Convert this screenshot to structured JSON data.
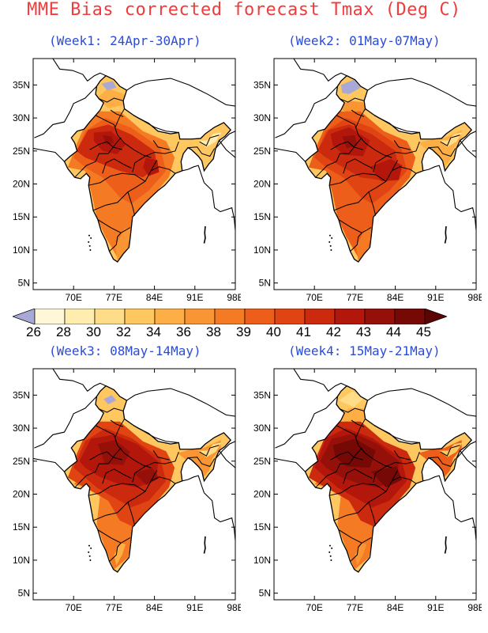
{
  "title": "MME Bias corrected forecast Tmax (Deg C)",
  "panels": [
    {
      "label": "(Week1: 24Apr-30Apr)"
    },
    {
      "label": "(Week2: 01May-07May)"
    },
    {
      "label": "(Week3: 08May-14May)"
    },
    {
      "label": "(Week4: 15May-21May)"
    }
  ],
  "axes": {
    "lat_labels": [
      "35N",
      "30N",
      "25N",
      "20N",
      "15N",
      "10N",
      "5N"
    ],
    "lon_labels": [
      "70E",
      "77E",
      "84E",
      "91E",
      "98E"
    ]
  },
  "colorbar": {
    "labels": [
      "26",
      "28",
      "30",
      "32",
      "34",
      "36",
      "38",
      "39",
      "40",
      "41",
      "42",
      "43",
      "44",
      "45"
    ],
    "colors": [
      "#a9a9d8",
      "#fff8d8",
      "#ffedb0",
      "#ffdd88",
      "#ffc760",
      "#fdae45",
      "#f99533",
      "#f47a24",
      "#ec5e1a",
      "#df4412",
      "#cc2a0e",
      "#b3170c",
      "#96100a",
      "#760806",
      "#5c0303"
    ]
  },
  "chart_data": {
    "type": "heatmap",
    "title": "MME Bias corrected forecast Tmax (Deg C)",
    "variable": "Tmax",
    "units": "Deg C",
    "levels": [
      26,
      28,
      30,
      32,
      34,
      36,
      38,
      39,
      40,
      41,
      42,
      43,
      44,
      45
    ],
    "lat_ticks": [
      "35N",
      "30N",
      "25N",
      "20N",
      "15N",
      "10N",
      "5N"
    ],
    "lon_ticks": [
      "70E",
      "77E",
      "84E",
      "91E",
      "98E"
    ],
    "panels": [
      {
        "period": "Week1: 24Apr-30Apr"
      },
      {
        "period": "Week2: 01May-07May"
      },
      {
        "period": "Week3: 08May-14May"
      },
      {
        "period": "Week4: 15May-21May"
      }
    ]
  }
}
